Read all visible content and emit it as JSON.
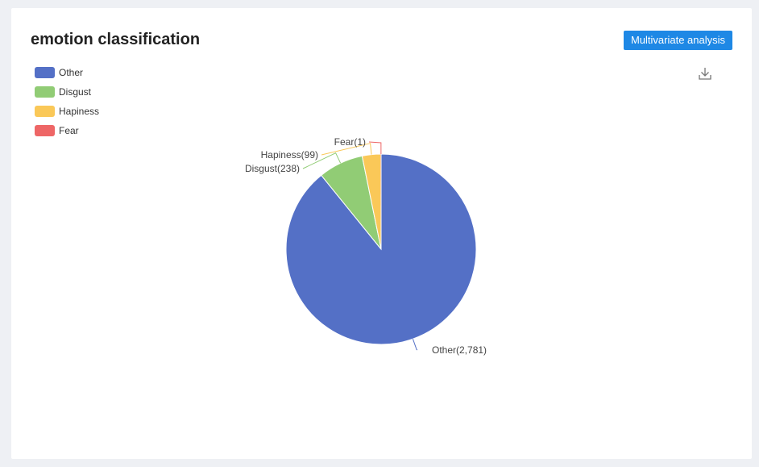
{
  "header": {
    "title": "emotion classification",
    "action_label": "Multivariate analysis",
    "download_icon": "download-icon"
  },
  "chart_data": {
    "type": "pie",
    "title": "emotion classification",
    "legend_position": "top-left",
    "slices": [
      {
        "name": "Other",
        "value": 2781,
        "label": "Other(2,781)",
        "color": "#5470c6"
      },
      {
        "name": "Disgust",
        "value": 238,
        "label": "Disgust(238)",
        "color": "#91cc75"
      },
      {
        "name": "Hapiness",
        "value": 99,
        "label": "Hapiness(99)",
        "color": "#fac858"
      },
      {
        "name": "Fear",
        "value": 1,
        "label": "Fear(1)",
        "color": "#ee6666"
      }
    ]
  }
}
